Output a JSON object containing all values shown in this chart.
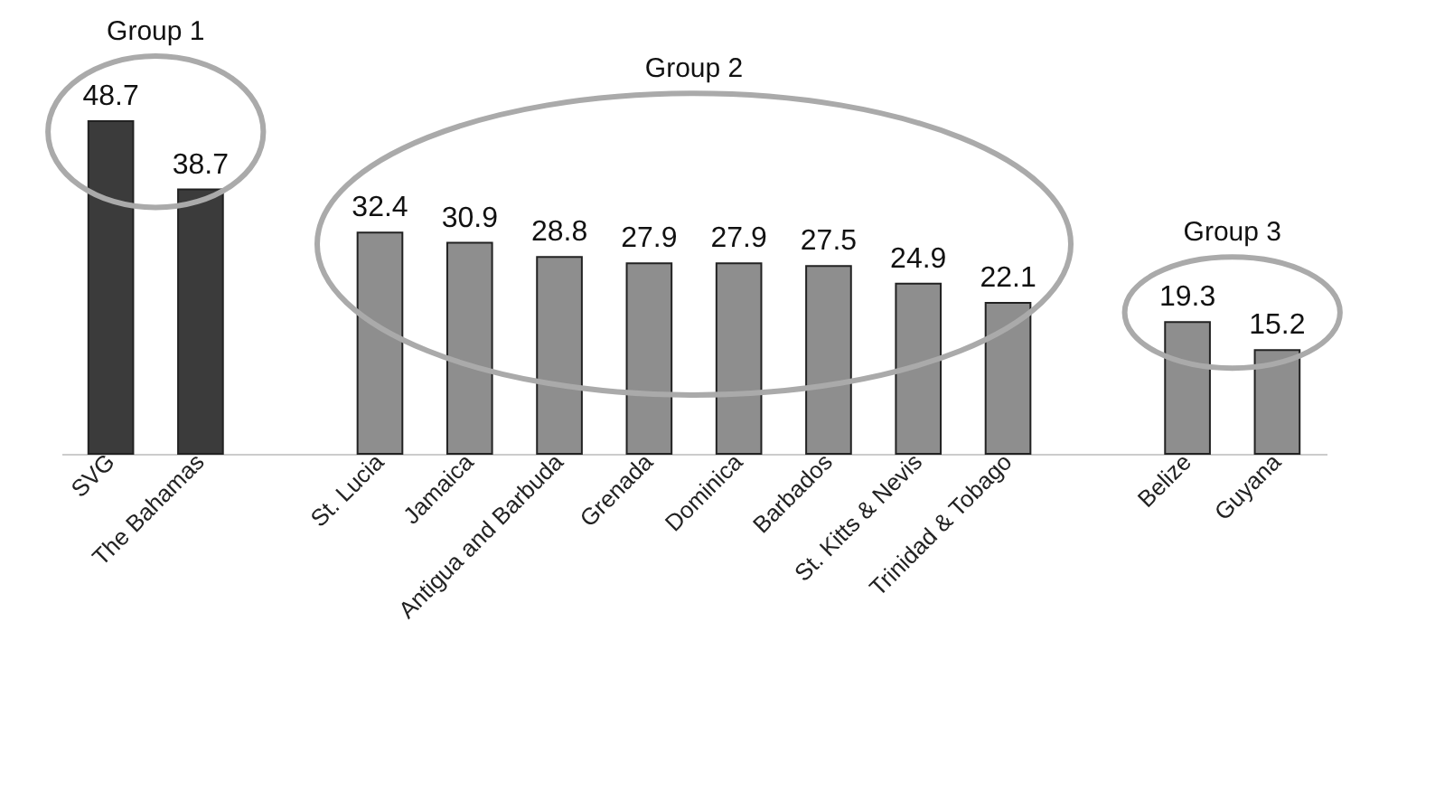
{
  "chart_data": {
    "type": "bar",
    "categories": [
      "SVG",
      "The Bahamas",
      null,
      "St. Lucia",
      "Jamaica",
      "Antigua and Barbuda",
      "Grenada",
      "Dominica",
      "Barbados",
      "St. Kitts & Nevis",
      "Trinidad & Tobago",
      null,
      "Belize",
      "Guyana"
    ],
    "values": [
      48.7,
      38.7,
      null,
      32.4,
      30.9,
      28.8,
      27.9,
      27.9,
      27.5,
      24.9,
      22.1,
      null,
      19.3,
      15.2
    ],
    "colors": [
      "#3b3b3b",
      "#3b3b3b",
      null,
      "#8e8e8e",
      "#8e8e8e",
      "#8e8e8e",
      "#8e8e8e",
      "#8e8e8e",
      "#8e8e8e",
      "#8e8e8e",
      "#8e8e8e",
      null,
      "#8e8e8e",
      "#8e8e8e"
    ],
    "data_labels": true,
    "annotations": [
      "Group 1",
      "Group 2",
      "Group 3"
    ],
    "grid": false
  }
}
